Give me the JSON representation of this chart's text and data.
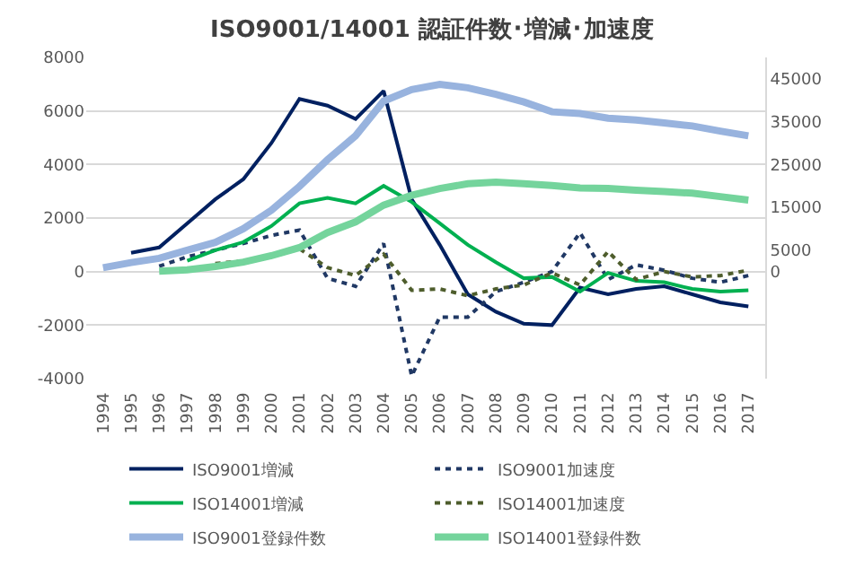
{
  "chart_data": {
    "type": "line",
    "title": "ISO9001/14001 認証件数･増減･加速度",
    "categories": [
      "1994",
      "1995",
      "1996",
      "1997",
      "1998",
      "1999",
      "2000",
      "2001",
      "2002",
      "2003",
      "2004",
      "2005",
      "2006",
      "2007",
      "2008",
      "2009",
      "2010",
      "2011",
      "2012",
      "2013",
      "2014",
      "2015",
      "2016",
      "2017"
    ],
    "series": [
      {
        "name": "ISO9001増減",
        "color": "#002060",
        "line_style": "solid",
        "values": [
          null,
          700,
          900,
          1800,
          2700,
          3450,
          4800,
          6450,
          6200,
          5700,
          6750,
          2700,
          1000,
          -850,
          -1500,
          -1950,
          -2000,
          -600,
          -850,
          -650,
          -550,
          -850,
          -1150,
          -1300
        ]
      },
      {
        "name": "ISO9001加速度",
        "color": "#203864",
        "line_style": "dotted",
        "values": [
          null,
          null,
          200,
          550,
          800,
          1050,
          1350,
          1550,
          -250,
          -550,
          1050,
          -3900,
          -1700,
          -1700,
          -750,
          -400,
          0,
          1450,
          -300,
          250,
          50,
          -250,
          -400,
          -150
        ]
      },
      {
        "name": "ISO14001増減",
        "color": "#00b050",
        "line_style": "solid",
        "values": [
          null,
          null,
          null,
          400,
          800,
          1100,
          1700,
          2550,
          2750,
          2550,
          3200,
          2600,
          1800,
          1000,
          350,
          -250,
          -200,
          -750,
          -50,
          -350,
          -400,
          -650,
          -750,
          -700
        ]
      },
      {
        "name": "ISO14001加速度",
        "color": "#4e5d2c",
        "line_style": "dotted",
        "values": [
          null,
          null,
          null,
          null,
          300,
          400,
          550,
          850,
          150,
          -150,
          650,
          -700,
          -650,
          -900,
          -650,
          -500,
          -50,
          -500,
          750,
          -300,
          0,
          -200,
          -150,
          50
        ]
      },
      {
        "name": "ISO9001登録件数",
        "color": "#98b3de",
        "line_style": "solid",
        "axis": "y2",
        "values": [
          900,
          2100,
          3100,
          5000,
          6800,
          10000,
          14300,
          19900,
          26100,
          31700,
          39800,
          42500,
          43700,
          42900,
          41400,
          39600,
          37300,
          36900,
          35800,
          35400,
          34700,
          34000,
          32800,
          31700
        ]
      },
      {
        "name": "ISO14001登録件数",
        "color": "#74d49c",
        "line_style": "solid",
        "axis": "y2",
        "values": [
          null,
          null,
          100,
          400,
          1200,
          2200,
          3700,
          5600,
          9100,
          11600,
          15500,
          17800,
          19400,
          20500,
          20900,
          20500,
          20100,
          19500,
          19400,
          19000,
          18700,
          18300,
          17500,
          16700
        ]
      }
    ],
    "ylim": [
      -4000,
      8000
    ],
    "yticks": [
      -4000,
      -2000,
      0,
      2000,
      4000,
      6000,
      8000
    ],
    "y2lim": [
      -25000,
      50000
    ],
    "y2ticks": [
      0,
      5000,
      15000,
      25000,
      35000,
      45000
    ],
    "grid": "y",
    "legend": "bottom"
  }
}
